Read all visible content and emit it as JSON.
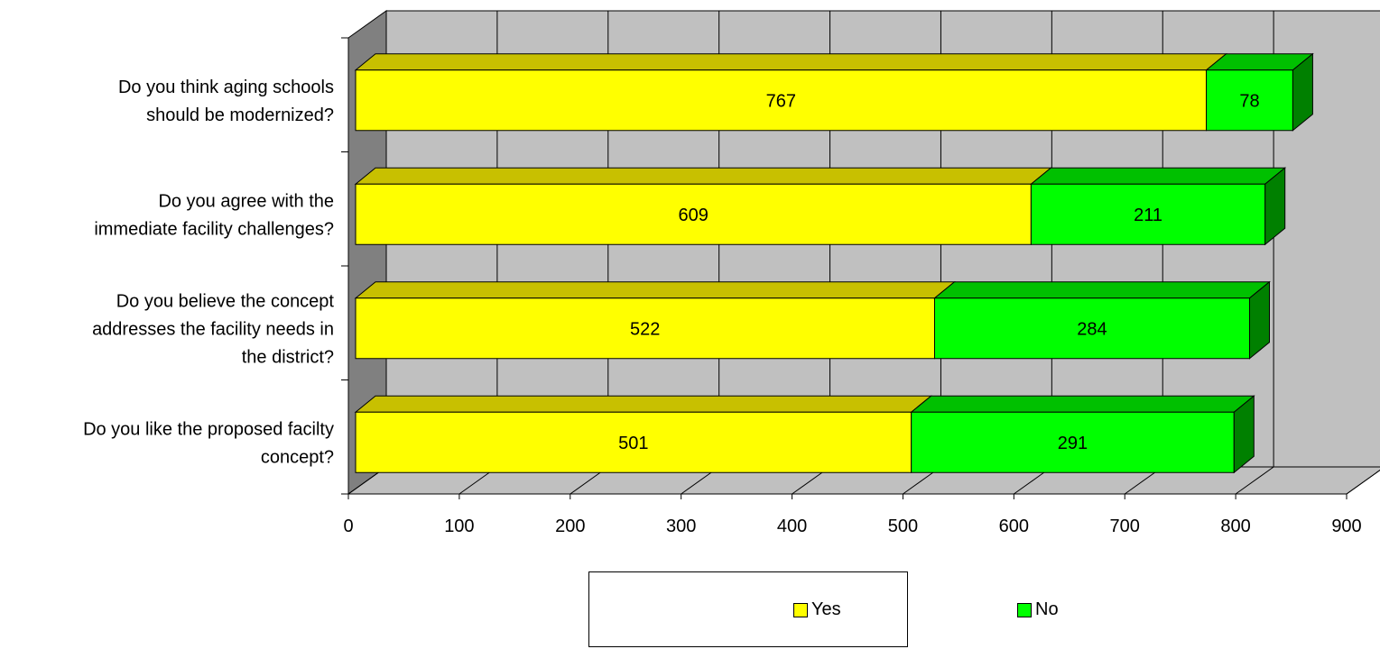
{
  "chart_data": {
    "type": "bar",
    "orientation": "horizontal",
    "stacked": true,
    "three_d": true,
    "categories": [
      "Do you think aging schools should be modernized?",
      "Do you agree with the immediate facility challenges?",
      "Do you believe the concept addresses the facility needs in the district?",
      "Do you like the proposed facilty concept?"
    ],
    "category_label_lines": [
      [
        "Do you think aging schools",
        "should be modernized?"
      ],
      [
        "Do you agree with the",
        "immediate facility challenges?"
      ],
      [
        "Do you believe the concept",
        "addresses the facility needs in",
        "the district?"
      ],
      [
        "Do you like the proposed facilty",
        "concept?"
      ]
    ],
    "series": [
      {
        "name": "Yes",
        "values": [
          767,
          609,
          522,
          501
        ],
        "color": "#ffff00",
        "top_color": "#c8c000"
      },
      {
        "name": "No",
        "values": [
          78,
          211,
          284,
          291
        ],
        "color": "#00ff00",
        "side_color": "#008000",
        "top_color": "#00c000"
      }
    ],
    "xlim": [
      0,
      900
    ],
    "xticks": [
      "0",
      "100",
      "200",
      "300",
      "400",
      "500",
      "600",
      "700",
      "800",
      "900"
    ],
    "grid": true,
    "wall_color": "#c0c0c0",
    "legend_position": "bottom"
  }
}
